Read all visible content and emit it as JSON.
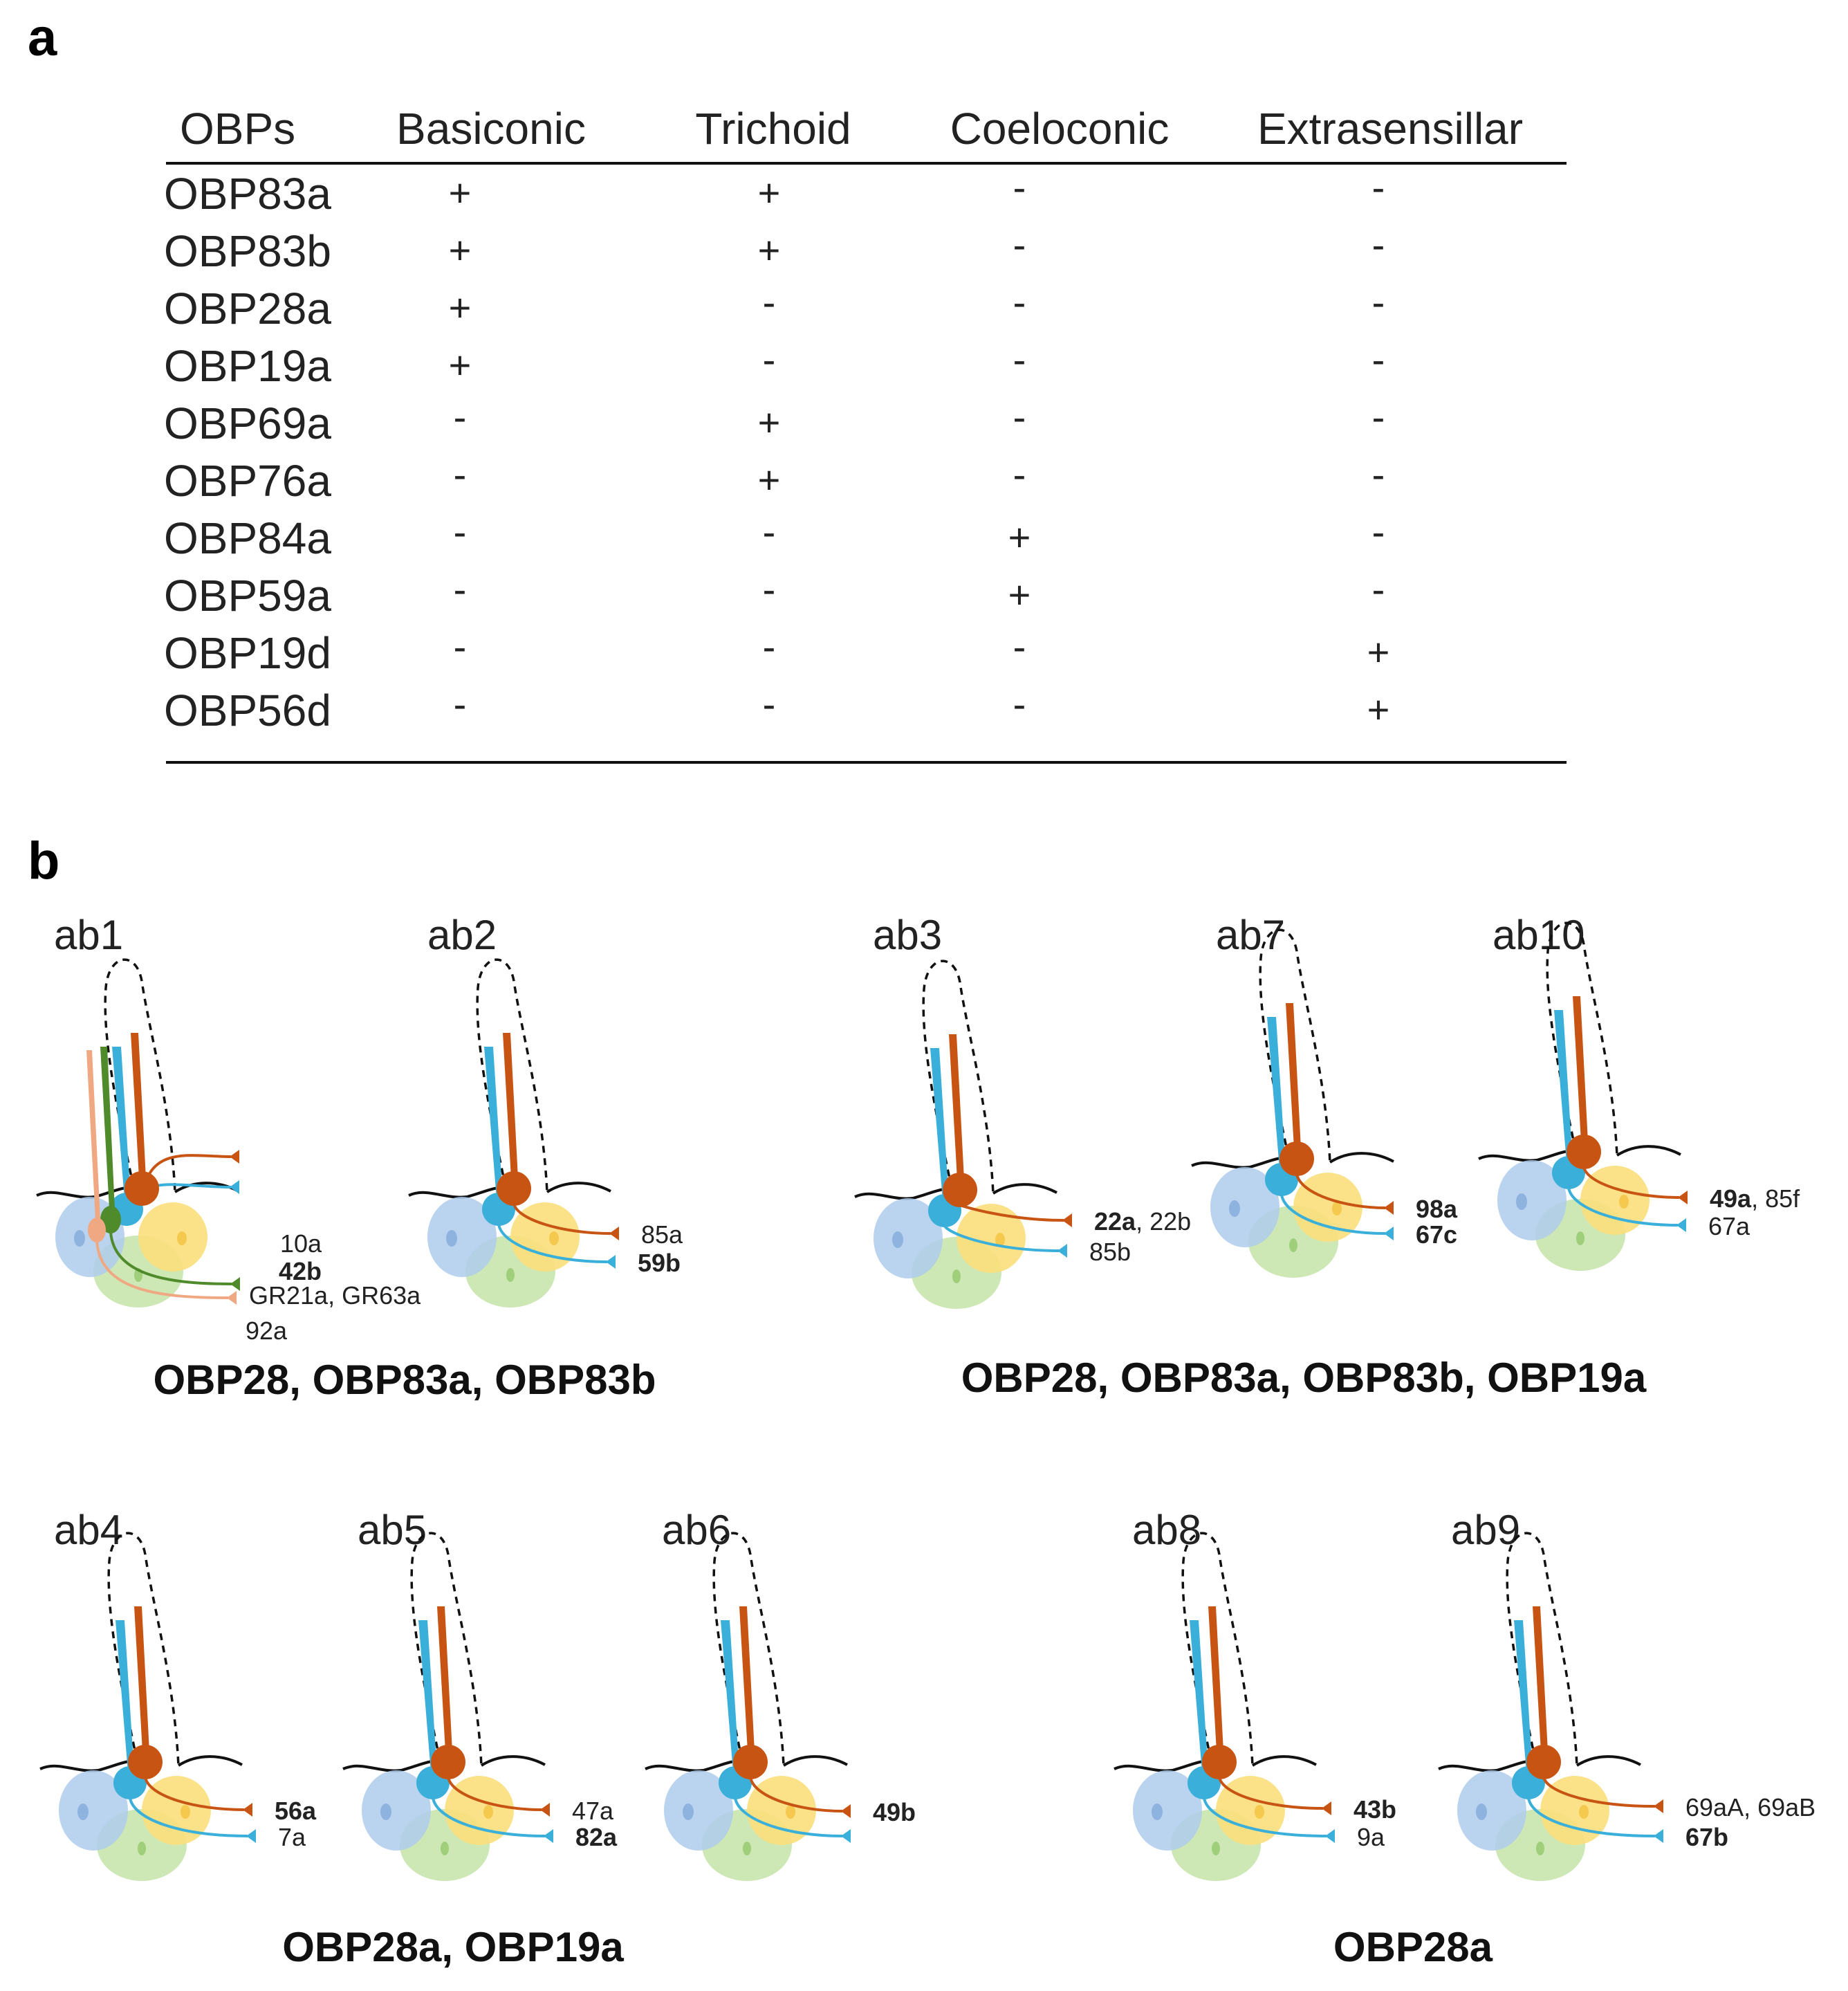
{
  "panel_a": {
    "label": "a",
    "headers": [
      "OBPs",
      "Basiconic",
      "Trichoid",
      "Coeloconic",
      "Extrasensillar"
    ],
    "rows": [
      {
        "obp": "OBP83a",
        "cells": [
          "+",
          "+",
          "-",
          "-"
        ]
      },
      {
        "obp": "OBP83b",
        "cells": [
          "+",
          "+",
          "-",
          "-"
        ]
      },
      {
        "obp": "OBP28a",
        "cells": [
          "+",
          "-",
          "-",
          "-"
        ]
      },
      {
        "obp": "OBP19a",
        "cells": [
          "+",
          "-",
          "-",
          "-"
        ]
      },
      {
        "obp": "OBP69a",
        "cells": [
          "-",
          "+",
          "-",
          "-"
        ]
      },
      {
        "obp": "OBP76a",
        "cells": [
          "-",
          "+",
          "-",
          "-"
        ]
      },
      {
        "obp": "OBP84a",
        "cells": [
          "-",
          "-",
          "+",
          "-"
        ]
      },
      {
        "obp": "OBP59a",
        "cells": [
          "-",
          "-",
          "+",
          "-"
        ]
      },
      {
        "obp": "OBP19d",
        "cells": [
          "-",
          "-",
          "-",
          "+"
        ]
      },
      {
        "obp": "OBP56d",
        "cells": [
          "-",
          "-",
          "-",
          "+"
        ]
      }
    ]
  },
  "panel_b": {
    "label": "b",
    "sensilla": [
      {
        "name": "ab1",
        "receptors": [
          {
            "parts": [
              {
                "t": "10a",
                "b": false
              }
            ]
          },
          {
            "parts": [
              {
                "t": "42b",
                "b": true
              }
            ]
          },
          {
            "parts": [
              {
                "t": "GR21a, GR63a",
                "b": false
              }
            ]
          },
          {
            "parts": [
              {
                "t": "92a",
                "b": false
              }
            ]
          }
        ]
      },
      {
        "name": "ab2",
        "receptors": [
          {
            "parts": [
              {
                "t": "85a",
                "b": false
              }
            ]
          },
          {
            "parts": [
              {
                "t": "59b",
                "b": true
              }
            ]
          }
        ]
      },
      {
        "name": "ab3",
        "receptors": [
          {
            "parts": [
              {
                "t": "22a",
                "b": true
              },
              {
                "t": ", 22b",
                "b": false
              }
            ]
          },
          {
            "parts": [
              {
                "t": "85b",
                "b": false
              }
            ]
          }
        ]
      },
      {
        "name": "ab7",
        "receptors": [
          {
            "parts": [
              {
                "t": "98a",
                "b": true
              }
            ]
          },
          {
            "parts": [
              {
                "t": "67c",
                "b": true
              }
            ]
          }
        ]
      },
      {
        "name": "ab10",
        "receptors": [
          {
            "parts": [
              {
                "t": "49a",
                "b": true
              },
              {
                "t": ", 85f",
                "b": false
              }
            ]
          },
          {
            "parts": [
              {
                "t": "67a",
                "b": false
              }
            ]
          }
        ]
      },
      {
        "name": "ab4",
        "receptors": [
          {
            "parts": [
              {
                "t": "56a",
                "b": true
              }
            ]
          },
          {
            "parts": [
              {
                "t": "7a",
                "b": false
              }
            ]
          }
        ]
      },
      {
        "name": "ab5",
        "receptors": [
          {
            "parts": [
              {
                "t": "47a",
                "b": false
              }
            ]
          },
          {
            "parts": [
              {
                "t": "82a",
                "b": true
              }
            ]
          }
        ]
      },
      {
        "name": "ab6",
        "receptors": [
          {
            "parts": [
              {
                "t": "49b",
                "b": true
              }
            ]
          }
        ]
      },
      {
        "name": "ab8",
        "receptors": [
          {
            "parts": [
              {
                "t": "43b",
                "b": true
              }
            ]
          },
          {
            "parts": [
              {
                "t": "9a",
                "b": false
              }
            ]
          }
        ]
      },
      {
        "name": "ab9",
        "receptors": [
          {
            "parts": [
              {
                "t": "69aA, 69aB",
                "b": false
              }
            ]
          },
          {
            "parts": [
              {
                "t": "67b",
                "b": true
              }
            ]
          }
        ]
      }
    ],
    "group_captions": [
      "OBP28, OBP83a, OBP83b",
      "OBP28, OBP83a, OBP83b, OBP19a",
      "OBP28a, OBP19a",
      "OBP28a"
    ]
  },
  "colors": {
    "orange_neuron": "#c85414",
    "cyan_neuron": "#3aafd9",
    "green_neuron": "#4f8a2b",
    "salmon_neuron": "#f0a882",
    "blue_support": "#aecbec",
    "yellow_support": "#fbdf7c",
    "green_support": "#c4e3a8"
  }
}
